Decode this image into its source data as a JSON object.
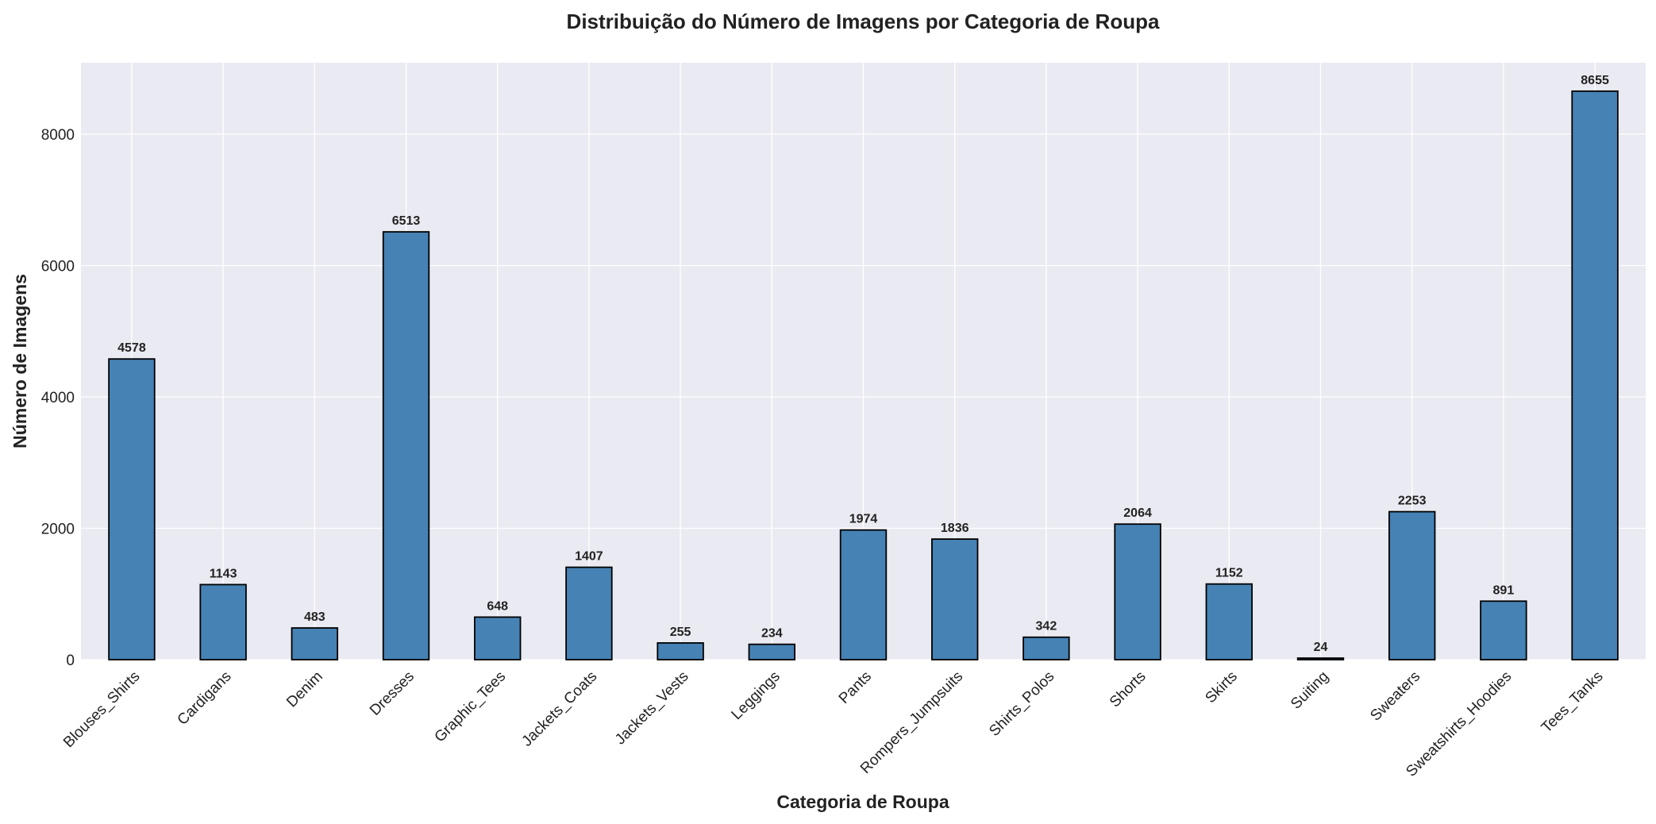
{
  "chart_data": {
    "type": "bar",
    "title": "Distribuição do Número de Imagens por Categoria de Roupa",
    "xlabel": "Categoria de Roupa",
    "ylabel": "Número de Imagens",
    "categories": [
      "Blouses_Shirts",
      "Cardigans",
      "Denim",
      "Dresses",
      "Graphic_Tees",
      "Jackets_Coats",
      "Jackets_Vests",
      "Leggings",
      "Pants",
      "Rompers_Jumpsuits",
      "Shirts_Polos",
      "Shorts",
      "Skirts",
      "Suiting",
      "Sweaters",
      "Sweatshirts_Hoodies",
      "Tees_Tanks"
    ],
    "values": [
      4578,
      1143,
      483,
      6513,
      648,
      1407,
      255,
      234,
      1974,
      1836,
      342,
      2064,
      1152,
      24,
      2253,
      891,
      8655
    ],
    "ylim": [
      0,
      9088
    ],
    "yticks": [
      0,
      2000,
      4000,
      6000,
      8000
    ],
    "grid": true,
    "legend": "none",
    "colors": {
      "bar": "#4682b4",
      "bar_edge": "#000000",
      "plot_background": "#eaeaf2",
      "grid": "#ffffff"
    }
  }
}
